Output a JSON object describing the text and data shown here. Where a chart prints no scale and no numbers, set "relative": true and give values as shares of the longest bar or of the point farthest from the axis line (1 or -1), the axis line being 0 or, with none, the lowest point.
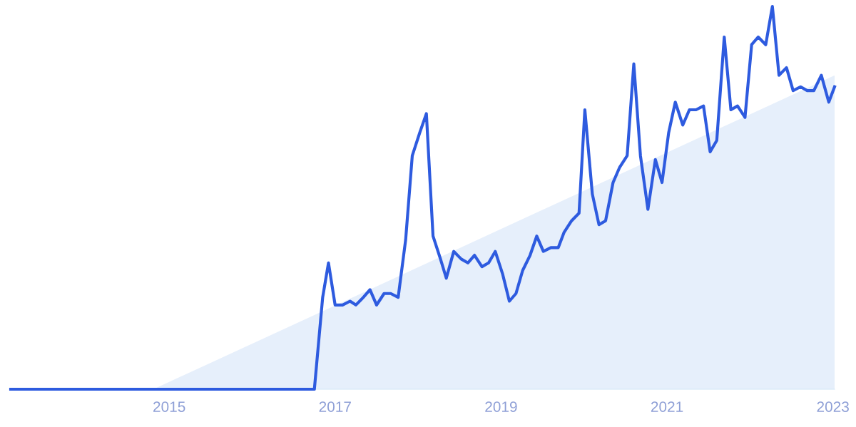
{
  "chart_data": {
    "type": "line",
    "relative": true,
    "xlim": [
      2013.09,
      2023.02
    ],
    "xticks": [
      2015,
      2017,
      2019,
      2021,
      2023
    ],
    "tick_labels": "x",
    "grid": false,
    "legend": false,
    "marker": "none",
    "line_style": "solid",
    "series": [
      {
        "type": "area",
        "color": "#e6effb",
        "x": [
          2014.81,
          2023.02
        ],
        "values": [
          0,
          0.82
        ]
      },
      {
        "color": "#2e5bdf",
        "x": [
          2013.09,
          2016.75,
          2016.85,
          2016.92,
          2017.0,
          2017.09,
          2017.18,
          2017.25,
          2017.34,
          2017.42,
          2017.5,
          2017.59,
          2017.67,
          2017.76,
          2017.85,
          2017.93,
          2018.02,
          2018.1,
          2018.18,
          2018.27,
          2018.34,
          2018.43,
          2018.52,
          2018.6,
          2018.68,
          2018.77,
          2018.85,
          2018.93,
          2019.02,
          2019.1,
          2019.18,
          2019.26,
          2019.35,
          2019.43,
          2019.51,
          2019.6,
          2019.69,
          2019.76,
          2019.85,
          2019.94,
          2020.01,
          2020.1,
          2020.18,
          2020.26,
          2020.35,
          2020.43,
          2020.52,
          2020.6,
          2020.68,
          2020.77,
          2020.86,
          2020.94,
          2021.02,
          2021.1,
          2021.19,
          2021.27,
          2021.35,
          2021.44,
          2021.52,
          2021.6,
          2021.69,
          2021.77,
          2021.85,
          2021.94,
          2022.02,
          2022.1,
          2022.19,
          2022.27,
          2022.35,
          2022.44,
          2022.52,
          2022.61,
          2022.69,
          2022.77,
          2022.86,
          2022.95,
          2023.02
        ],
        "values": [
          0,
          0,
          0.24,
          0.33,
          0.22,
          0.22,
          0.23,
          0.22,
          0.24,
          0.26,
          0.22,
          0.25,
          0.25,
          0.24,
          0.39,
          0.61,
          0.67,
          0.72,
          0.4,
          0.34,
          0.29,
          0.36,
          0.34,
          0.33,
          0.35,
          0.32,
          0.33,
          0.36,
          0.3,
          0.23,
          0.25,
          0.31,
          0.35,
          0.4,
          0.36,
          0.37,
          0.37,
          0.41,
          0.44,
          0.46,
          0.73,
          0.51,
          0.43,
          0.44,
          0.54,
          0.58,
          0.61,
          0.85,
          0.61,
          0.47,
          0.6,
          0.54,
          0.67,
          0.75,
          0.69,
          0.73,
          0.73,
          0.74,
          0.62,
          0.65,
          0.92,
          0.73,
          0.74,
          0.71,
          0.9,
          0.92,
          0.9,
          1.0,
          0.82,
          0.84,
          0.78,
          0.79,
          0.78,
          0.78,
          0.82,
          0.75,
          0.79
        ]
      }
    ]
  }
}
